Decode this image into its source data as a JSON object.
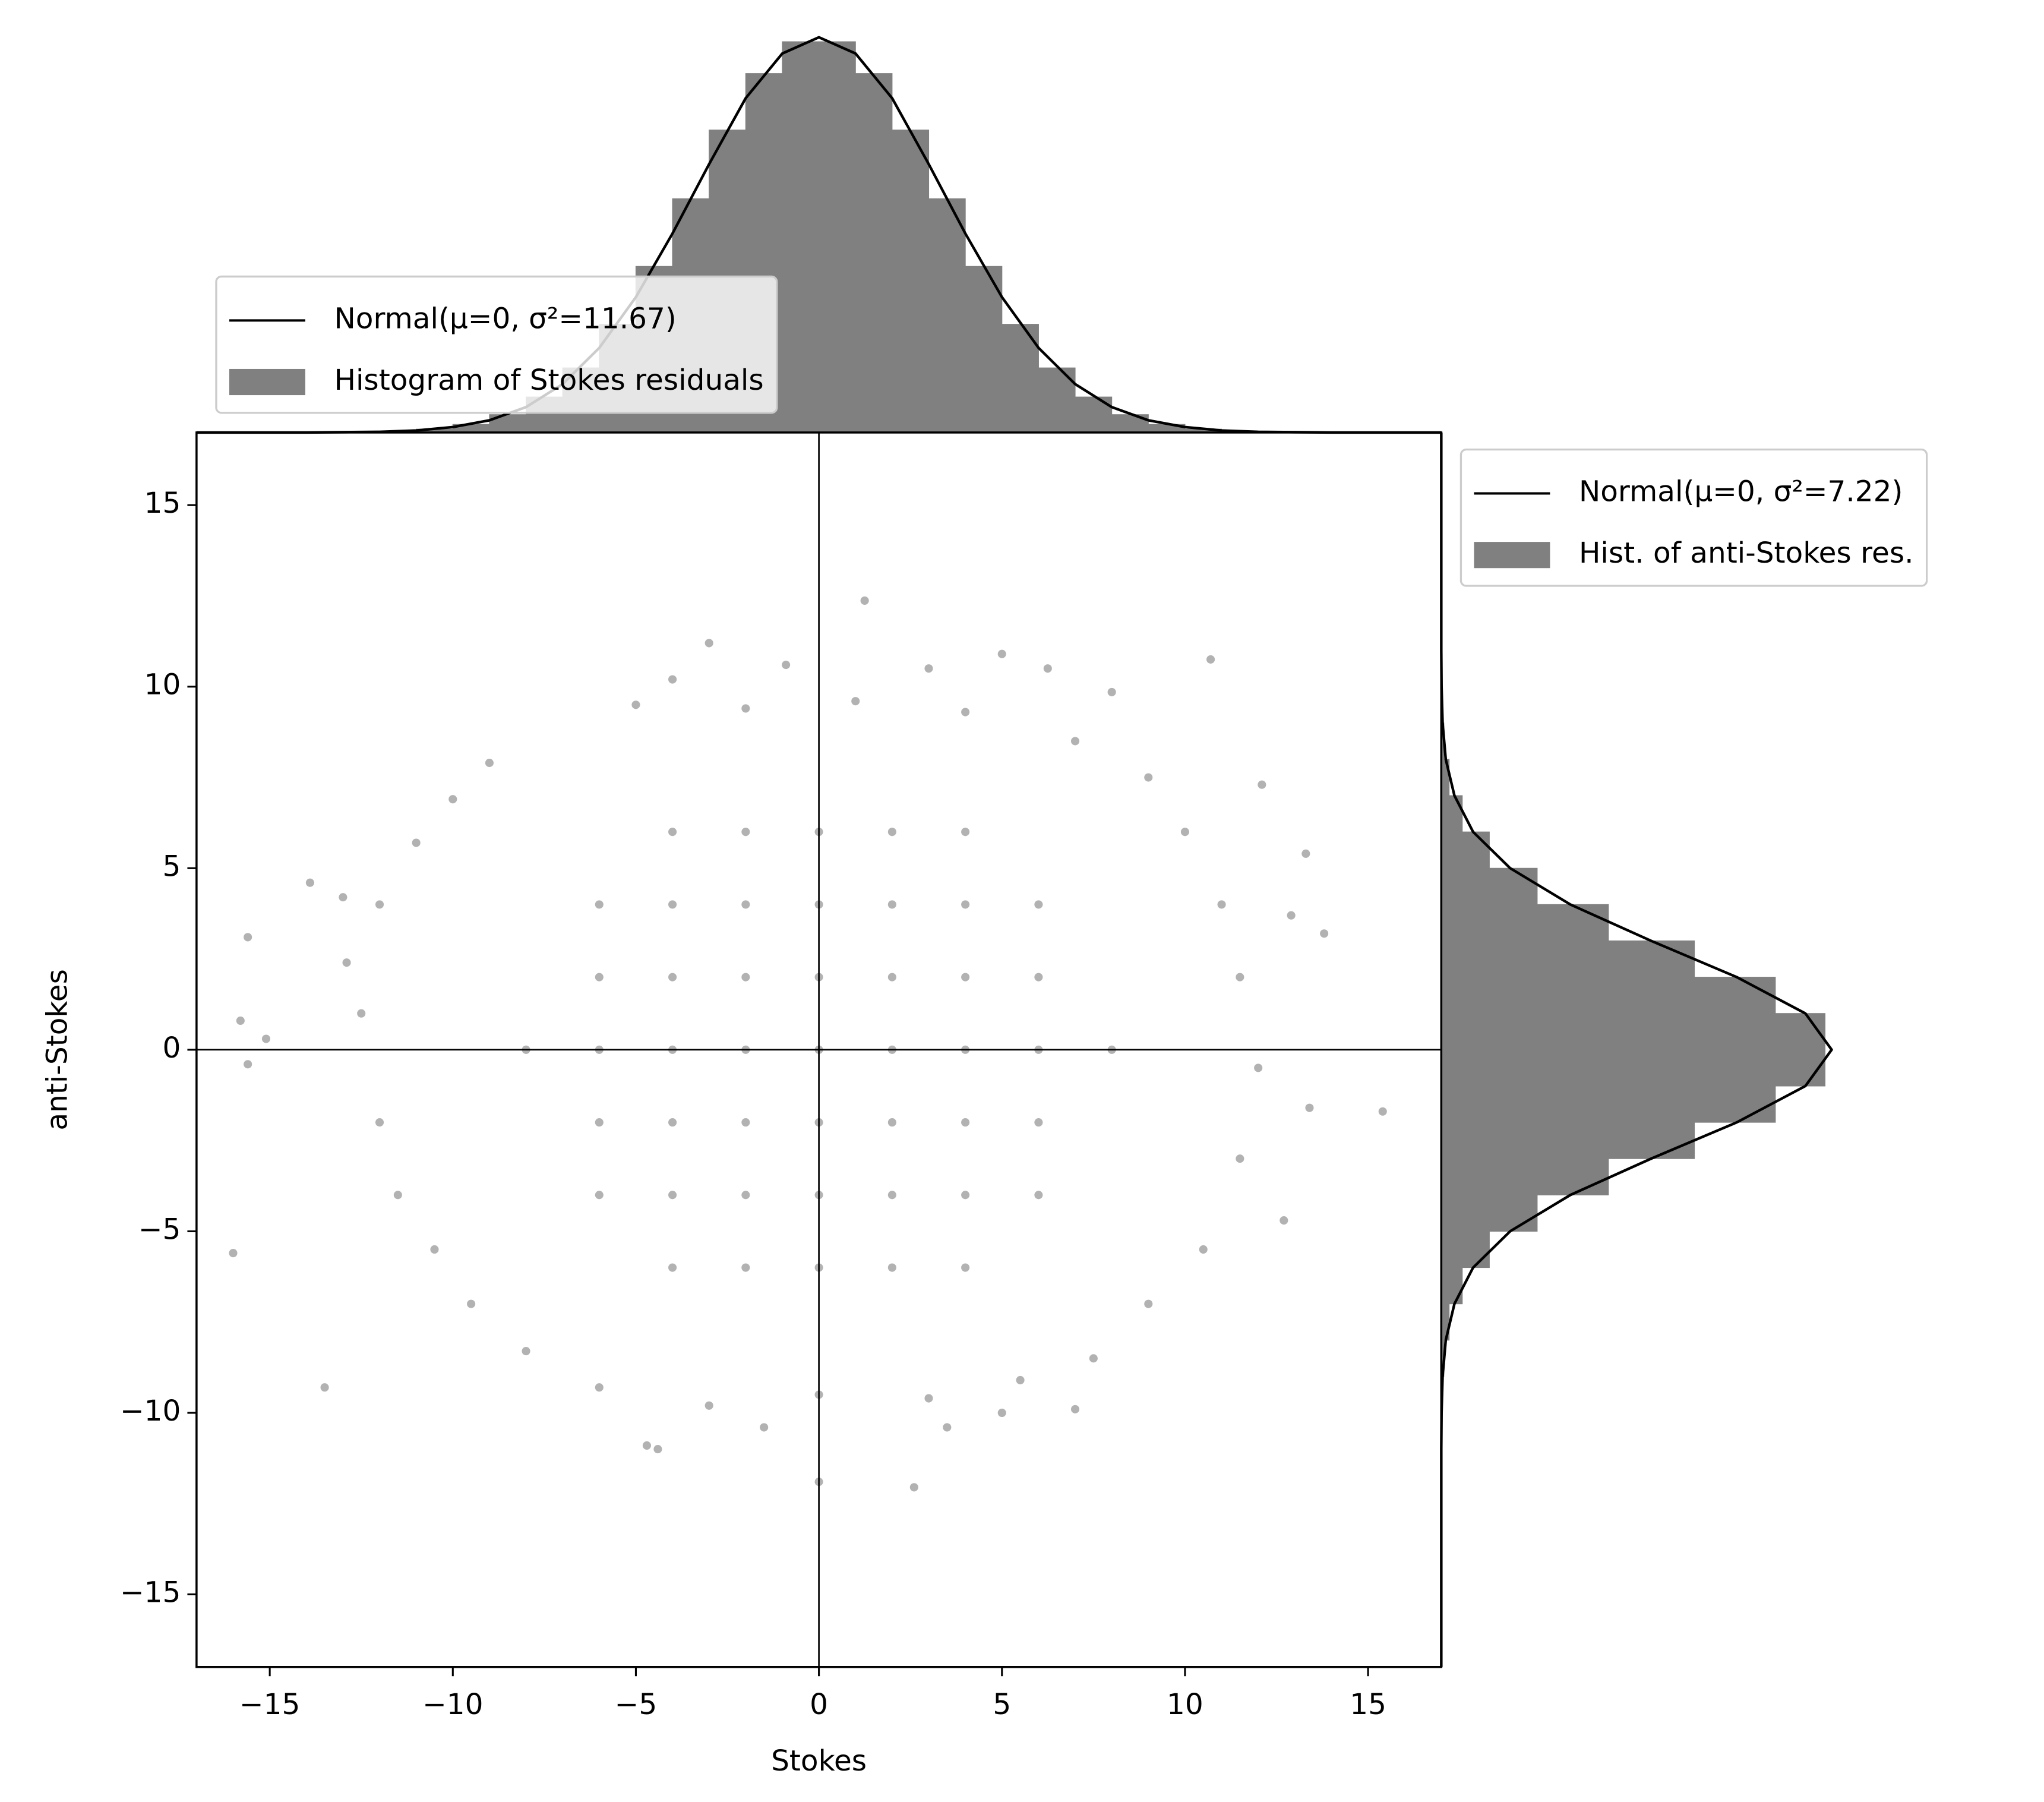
{
  "chart_data": [
    {
      "type": "scatter",
      "xlabel": "Stokes",
      "ylabel": "anti-Stokes",
      "color": "#000000",
      "x": [
        1.25,
        -3.0,
        10.7,
        -16.0,
        -15.6,
        -15.8,
        -15.6,
        -15.1,
        -13.5,
        -13.9,
        -13.0,
        -12.9,
        -4.7,
        -4.4,
        0.0,
        2.6,
        -1.5,
        3.5,
        5.0,
        7.0,
        13.4,
        15.4,
        12.9,
        13.3,
        12.1,
        13.8,
        12.7,
        5.0,
        6.25,
        8.0,
        3.0,
        -0.9,
        -4.0,
        -5.0,
        -9.0,
        -10.0,
        -11.0,
        -12.0,
        -12.5,
        -12.0,
        -11.5,
        -10.5,
        -9.5,
        -8.0,
        -6.0,
        -3.0,
        0.0,
        3.0,
        5.5,
        7.5,
        9.0,
        10.5,
        11.5,
        12.0,
        11.5,
        11.0,
        10.0,
        9.0,
        7.0,
        4.0,
        1.0,
        -2.0,
        -8,
        -6,
        -4,
        -2,
        0,
        2,
        4,
        6,
        8,
        -6,
        -4,
        -2,
        0,
        2,
        4,
        6,
        -6,
        -4,
        -2,
        0,
        2,
        4,
        6,
        -6,
        -4,
        -2,
        0,
        2,
        4,
        6,
        -6,
        -4,
        -2,
        0,
        2,
        4,
        6,
        -4,
        -2,
        0,
        2,
        4,
        -4,
        -2,
        0,
        2,
        4
      ],
      "values": [
        12.37,
        11.2,
        10.75,
        -5.6,
        3.1,
        0.8,
        -0.4,
        0.3,
        -9.3,
        4.6,
        4.2,
        2.4,
        -10.9,
        -11.0,
        -11.9,
        -12.05,
        -10.4,
        -10.4,
        -10.0,
        -9.9,
        -1.6,
        -1.7,
        3.7,
        5.4,
        7.3,
        3.2,
        -4.7,
        10.9,
        10.5,
        9.85,
        10.5,
        10.6,
        10.2,
        9.5,
        7.9,
        6.9,
        5.7,
        4.0,
        1.0,
        -2.0,
        -4.0,
        -5.5,
        -7.0,
        -8.3,
        -9.3,
        -9.8,
        -9.5,
        -9.6,
        -9.1,
        -8.5,
        -7.0,
        -5.5,
        -3.0,
        -0.5,
        2.0,
        4.0,
        6.0,
        7.5,
        8.5,
        9.3,
        9.6,
        9.4,
        0,
        0,
        0,
        0,
        0,
        0,
        0,
        0,
        0,
        2,
        2,
        2,
        2,
        2,
        2,
        2,
        -2,
        -2,
        -2,
        -2,
        -2,
        -2,
        -2,
        4,
        4,
        4,
        4,
        4,
        4,
        4,
        -4,
        -4,
        -4,
        -4,
        -4,
        -4,
        -4,
        6,
        6,
        6,
        6,
        6,
        -6,
        -6,
        -6,
        -6,
        -6
      ],
      "xlim": [
        -17,
        17
      ],
      "ylim": [
        -17,
        17
      ],
      "xticks": [
        {
          "value": -15,
          "label": "−15"
        },
        {
          "value": -10,
          "label": "−10"
        },
        {
          "value": -5,
          "label": "−5"
        },
        0,
        5,
        10,
        15
      ],
      "yticks": [
        {
          "value": -15,
          "label": "−15"
        },
        {
          "value": -10,
          "label": "−10"
        },
        {
          "value": -5,
          "label": "−5"
        },
        0,
        5,
        10,
        15
      ],
      "hline": 0,
      "vline": 0
    },
    {
      "type": "histogram",
      "orientation": "vertical",
      "legend": "lower left",
      "xlim": [
        -17,
        17
      ],
      "ylim": [
        0,
        0.122
      ],
      "series": [
        {
          "name": "Normal(μ=0, σ²=11.67)",
          "type": "line",
          "color": "#000000",
          "x": [
            -17,
            -16,
            -15,
            -14,
            -13,
            -12,
            -11,
            -10,
            -9,
            -8,
            -7,
            -6,
            -5,
            -4,
            -3,
            -2,
            -1,
            0,
            1,
            2,
            3,
            4,
            5,
            6,
            7,
            8,
            9,
            10,
            11,
            12,
            13,
            14,
            15,
            16,
            17
          ],
          "values": [
            0,
            0,
            0,
            0,
            0.0001,
            0.0002,
            0.0006,
            0.0016,
            0.0036,
            0.0075,
            0.0143,
            0.025,
            0.04,
            0.0588,
            0.0793,
            0.0988,
            0.112,
            0.1168,
            0.112,
            0.0988,
            0.0793,
            0.0588,
            0.04,
            0.025,
            0.0143,
            0.0075,
            0.0036,
            0.0016,
            0.0006,
            0.0002,
            0.0001,
            0,
            0,
            0,
            0
          ]
        },
        {
          "name": "Histogram of Stokes residuals",
          "type": "histogram",
          "color": "#808080",
          "bins": [
            -16,
            -15,
            -14,
            -13,
            -12,
            -11,
            -10,
            -9,
            -8,
            -7,
            -6,
            -5,
            -4,
            -3,
            -2,
            -1,
            0,
            1,
            2,
            3,
            4,
            5,
            6,
            7,
            8,
            9,
            10,
            11,
            12,
            13,
            14,
            15,
            16
          ],
          "values": [
            0,
            0,
            0,
            0.0001,
            0.0004,
            0.001,
            0.0024,
            0.0053,
            0.0105,
            0.0191,
            0.032,
            0.0491,
            0.0691,
            0.0894,
            0.1061,
            0.1155,
            0.1155,
            0.1061,
            0.0894,
            0.0691,
            0.0491,
            0.032,
            0.0191,
            0.0105,
            0.0053,
            0.0024,
            0.001,
            0.0004,
            0.0001,
            0,
            0,
            0
          ]
        }
      ]
    },
    {
      "type": "histogram",
      "orientation": "horizontal",
      "legend": "upper left",
      "xlim": [
        0,
        0.157
      ],
      "ylim": [
        -17,
        17
      ],
      "series": [
        {
          "name": "Normal(μ=0, σ²=7.22)",
          "type": "line",
          "color": "#000000",
          "x": [
            -17,
            -16,
            -15,
            -14,
            -13,
            -12,
            -11,
            -10,
            -9,
            -8,
            -7,
            -6,
            -5,
            -4,
            -3,
            -2,
            -1,
            0,
            1,
            2,
            3,
            4,
            5,
            6,
            7,
            8,
            9,
            10,
            11,
            12,
            13,
            14,
            15,
            16,
            17
          ],
          "values": [
            0,
            0,
            0,
            0,
            0,
            0,
            0,
            0.0001,
            0.0005,
            0.0017,
            0.005,
            0.0121,
            0.0262,
            0.0491,
            0.0798,
            0.1124,
            0.1385,
            0.1485,
            0.1385,
            0.1124,
            0.0798,
            0.0491,
            0.0262,
            0.0121,
            0.005,
            0.0017,
            0.0005,
            0.0001,
            0,
            0,
            0,
            0,
            0,
            0,
            0
          ]
        },
        {
          "name": "Hist. of anti-Stokes res.",
          "type": "histogram",
          "color": "#808080",
          "bins": [
            -16,
            -15,
            -14,
            -13,
            -12,
            -11,
            -10,
            -9,
            -8,
            -7,
            -6,
            -5,
            -4,
            -3,
            -2,
            -1,
            0,
            1,
            2,
            3,
            4,
            5,
            6,
            7,
            8,
            9,
            10,
            11,
            12,
            13,
            14,
            15,
            16
          ],
          "values": [
            0,
            0,
            0,
            0,
            0,
            0.0001,
            0.0003,
            0.001,
            0.003,
            0.008,
            0.0183,
            0.0365,
            0.0636,
            0.0963,
            0.1271,
            0.146,
            0.146,
            0.1271,
            0.0963,
            0.0636,
            0.0365,
            0.0183,
            0.008,
            0.003,
            0.001,
            0.0003,
            0.0001,
            0,
            0,
            0,
            0,
            0
          ]
        }
      ]
    }
  ]
}
